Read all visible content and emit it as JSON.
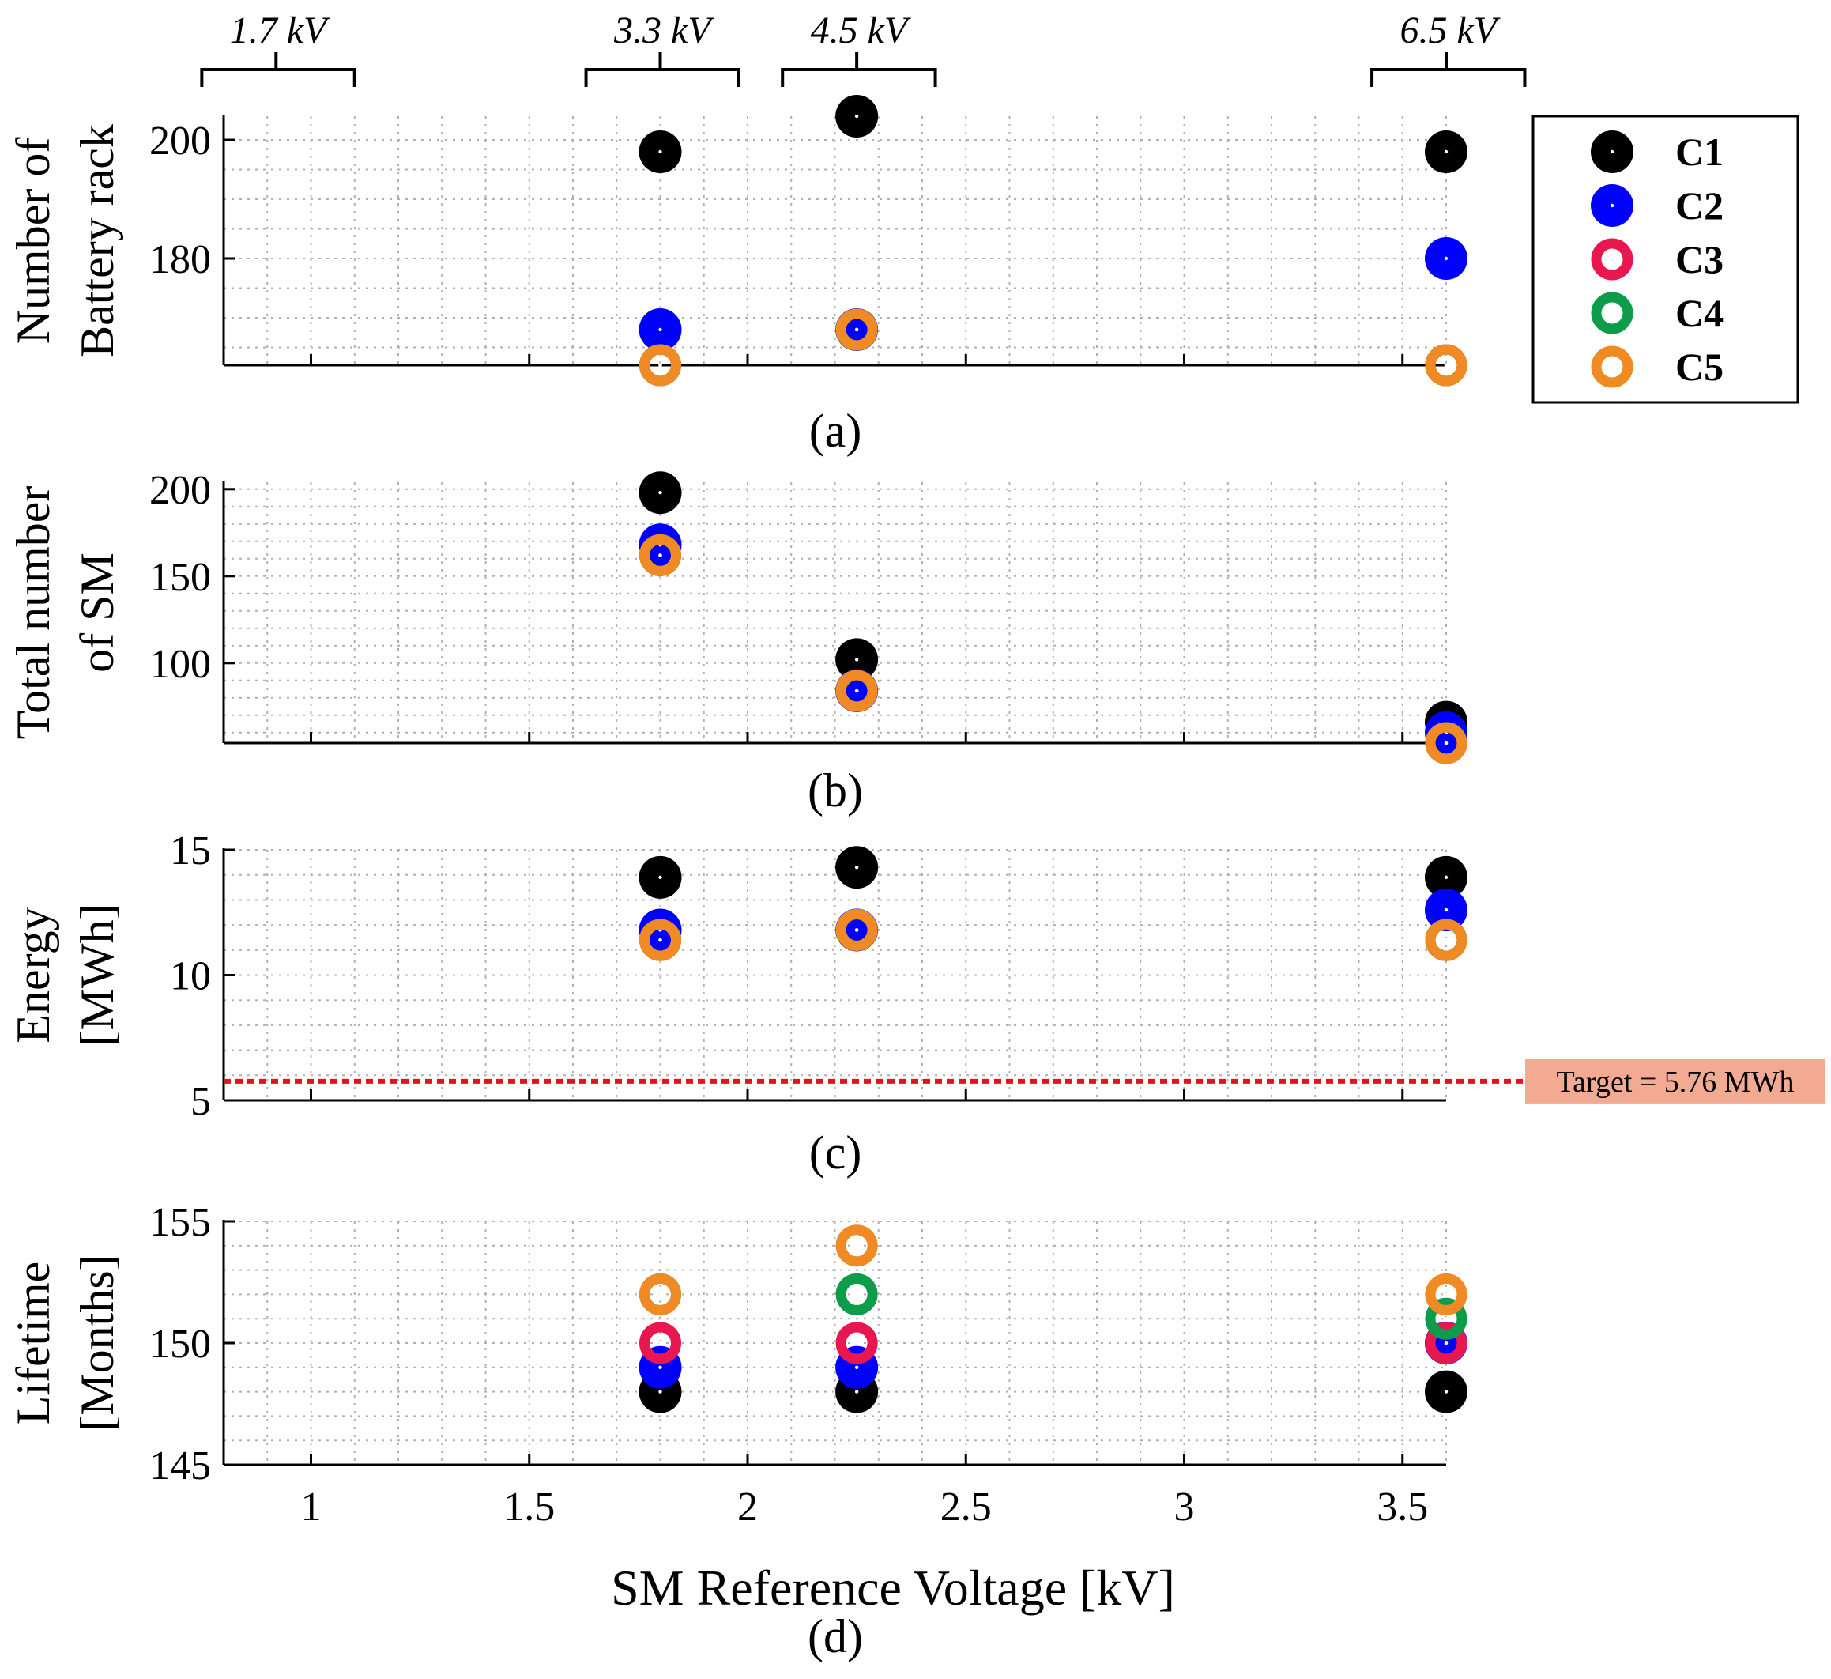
{
  "chart_data": {
    "type": "scatter",
    "xlabel": "SM Reference Voltage [kV]",
    "xlim": [
      0.8,
      3.6
    ],
    "xticks": [
      1,
      1.5,
      2,
      2.5,
      3,
      3.5
    ],
    "x": [
      1.8,
      2.25,
      3.6
    ],
    "voltage_groups": [
      {
        "label": "1.7 kV",
        "center": 0.92,
        "from": 0.75,
        "to": 1.1
      },
      {
        "label": "3.3 kV",
        "center": 1.8,
        "from": 1.63,
        "to": 1.98
      },
      {
        "label": "4.5 kV",
        "center": 2.25,
        "from": 2.08,
        "to": 2.43
      },
      {
        "label": "6.5 kV",
        "center": 3.6,
        "from": 3.43,
        "to": 3.78
      }
    ],
    "legend": {
      "placement": "top-right",
      "entries": [
        {
          "name": "C1",
          "color": "#000000",
          "marker": "filled"
        },
        {
          "name": "C2",
          "color": "#0000ff",
          "marker": "filled"
        },
        {
          "name": "C3",
          "color": "#e8174f",
          "marker": "ring"
        },
        {
          "name": "C4",
          "color": "#0c9c4a",
          "marker": "ring"
        },
        {
          "name": "C5",
          "color": "#f08a24",
          "marker": "ring"
        }
      ]
    },
    "panels": [
      {
        "id": "a",
        "label": "(a)",
        "ylabel": [
          "Number of",
          "Battery rack"
        ],
        "ylim": [
          162,
          204
        ],
        "yticks": [
          180,
          200
        ],
        "series": [
          {
            "name": "C1",
            "values": [
              198,
              204,
              198
            ]
          },
          {
            "name": "C2",
            "values": [
              168,
              168,
              180
            ]
          },
          {
            "name": "C3",
            "values": [
              162,
              168,
              162
            ]
          },
          {
            "name": "C4",
            "values": [
              162,
              168,
              162
            ]
          },
          {
            "name": "C5",
            "values": [
              162,
              168,
              162
            ]
          }
        ]
      },
      {
        "id": "b",
        "label": "(b)",
        "ylabel": [
          "Total number",
          "of  SM"
        ],
        "ylim": [
          54,
          204
        ],
        "yticks": [
          100,
          150,
          200
        ],
        "series": [
          {
            "name": "C1",
            "values": [
              198,
              102,
              66
            ]
          },
          {
            "name": "C2",
            "values": [
              168,
              84,
              60
            ]
          },
          {
            "name": "C3",
            "values": [
              162,
              84,
              54
            ]
          },
          {
            "name": "C4",
            "values": [
              162,
              84,
              54
            ]
          },
          {
            "name": "C5",
            "values": [
              162,
              84,
              54
            ]
          }
        ]
      },
      {
        "id": "c",
        "label": "(c)",
        "ylabel": [
          "Energy",
          "[MWh]"
        ],
        "ylim": [
          5,
          15
        ],
        "yticks": [
          5,
          10,
          15
        ],
        "target": {
          "value": 5.76,
          "label": "Target = 5.76 MWh",
          "color": "#e8101a",
          "box_color": "#f2ab92"
        },
        "series": [
          {
            "name": "C1",
            "values": [
              13.9,
              14.3,
              13.9
            ]
          },
          {
            "name": "C2",
            "values": [
              11.8,
              11.8,
              12.6
            ]
          },
          {
            "name": "C3",
            "values": [
              11.4,
              11.8,
              11.4
            ]
          },
          {
            "name": "C4",
            "values": [
              11.4,
              11.8,
              11.4
            ]
          },
          {
            "name": "C5",
            "values": [
              11.4,
              11.8,
              11.4
            ]
          }
        ]
      },
      {
        "id": "d",
        "label": "(d)",
        "ylabel": [
          "Lifetime",
          "[Months]"
        ],
        "ylim": [
          145,
          155
        ],
        "yticks": [
          145,
          150,
          155
        ],
        "series": [
          {
            "name": "C1",
            "values": [
              148,
              148,
              148
            ]
          },
          {
            "name": "C2",
            "values": [
              149,
              149,
              150
            ]
          },
          {
            "name": "C3",
            "values": [
              150,
              150,
              150
            ]
          },
          {
            "name": "C4",
            "values": [
              152,
              152,
              151
            ]
          },
          {
            "name": "C5",
            "values": [
              152,
              154,
              152
            ]
          }
        ]
      }
    ]
  }
}
